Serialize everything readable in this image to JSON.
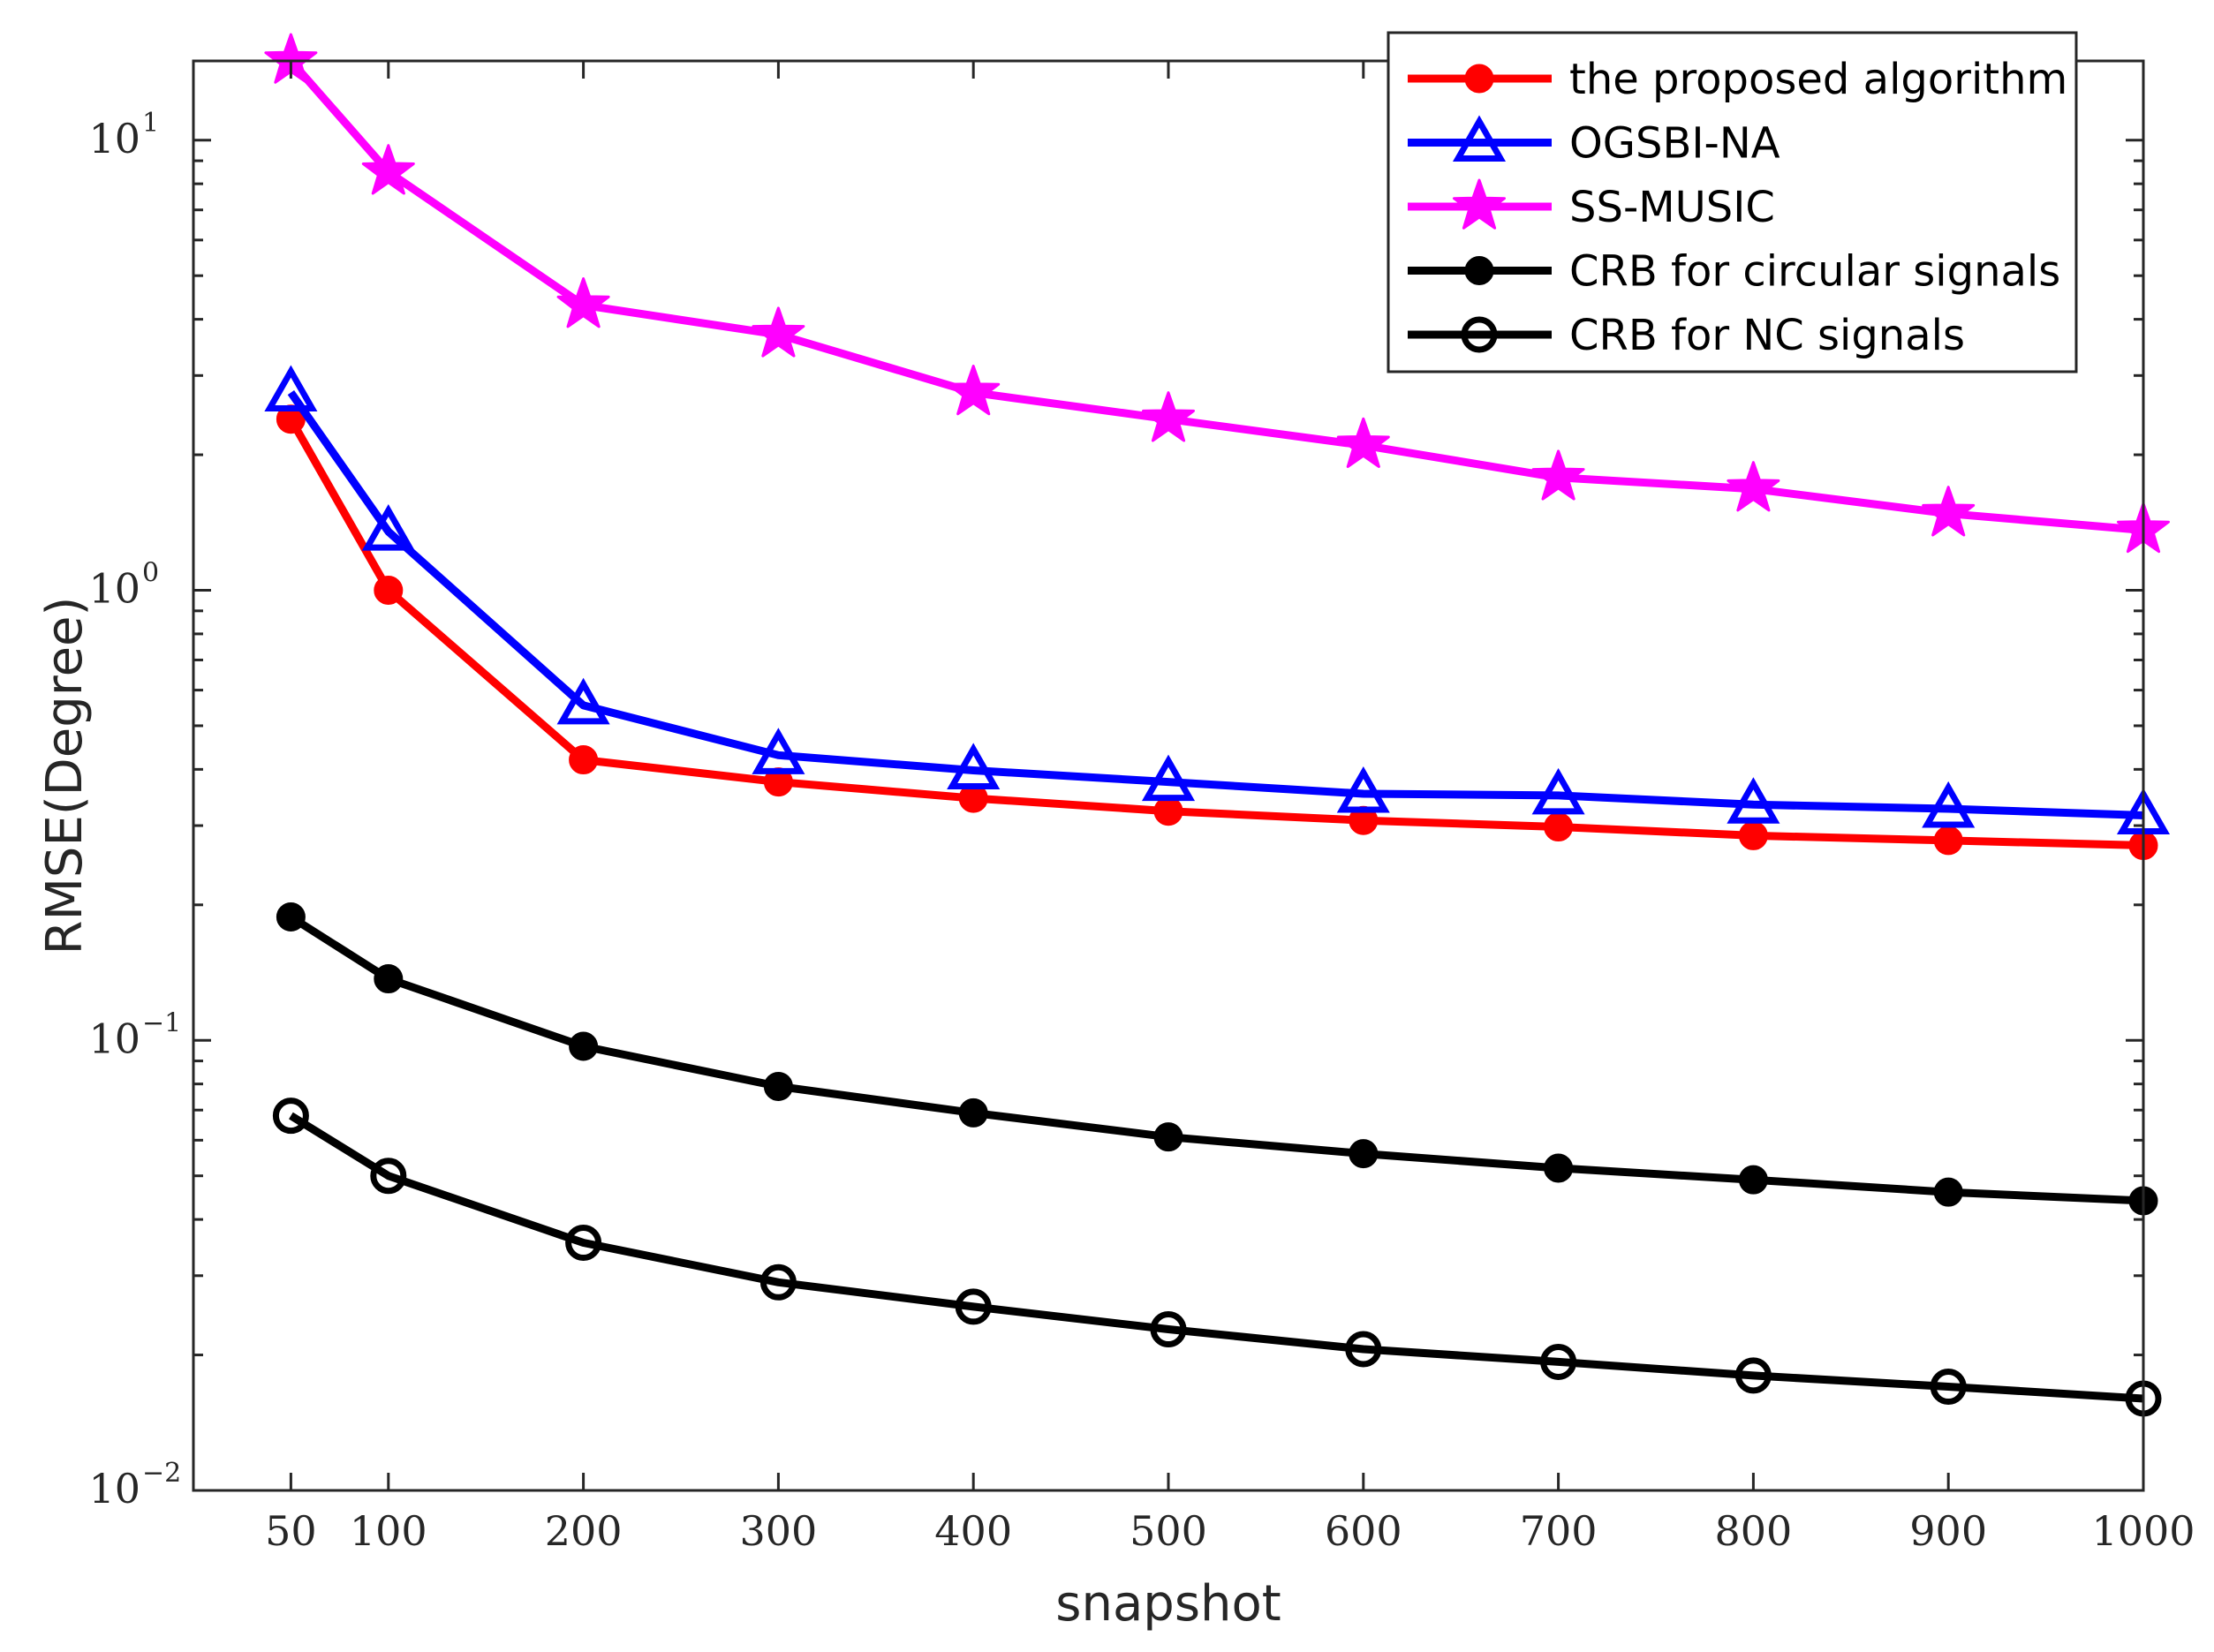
{
  "chart_data": {
    "type": "line",
    "xlabel": "snapshot",
    "ylabel": "RMSE(Degree)",
    "yscale": "log",
    "xlim": [
      0,
      1000
    ],
    "ylim": [
      0.01,
      15
    ],
    "x": [
      50,
      100,
      200,
      300,
      400,
      500,
      600,
      700,
      800,
      900,
      1000
    ],
    "xticks": [
      50,
      100,
      200,
      300,
      400,
      500,
      600,
      700,
      800,
      900,
      1000
    ],
    "yticks": [
      {
        "value": 0.01,
        "base": "10",
        "exp": "−2"
      },
      {
        "value": 0.1,
        "base": "10",
        "exp": "−1"
      },
      {
        "value": 1,
        "base": "10",
        "exp": "0"
      },
      {
        "value": 10,
        "base": "10",
        "exp": "1"
      }
    ],
    "legend_position": "top-right",
    "series": [
      {
        "name": "the proposed algorithm",
        "color": "#ff0000",
        "marker": "dot",
        "values": [
          2.4,
          1.0,
          0.42,
          0.375,
          0.345,
          0.323,
          0.308,
          0.298,
          0.285,
          0.278,
          0.271
        ]
      },
      {
        "name": "OGSBI-NA",
        "color": "#0000ff",
        "marker": "triangle",
        "values": [
          2.75,
          1.35,
          0.555,
          0.43,
          0.398,
          0.375,
          0.353,
          0.35,
          0.334,
          0.327,
          0.316
        ]
      },
      {
        "name": "SS-MUSIC",
        "color": "#ff00ff",
        "marker": "star",
        "values": [
          15.0,
          8.5,
          4.3,
          3.7,
          2.75,
          2.4,
          2.1,
          1.78,
          1.68,
          1.48,
          1.36
        ]
      },
      {
        "name": "CRB for circular signals",
        "color": "#000000",
        "marker": "dot",
        "values": [
          0.188,
          0.137,
          0.097,
          0.079,
          0.069,
          0.061,
          0.056,
          0.052,
          0.049,
          0.046,
          0.044
        ]
      },
      {
        "name": "CRB for NC signals",
        "color": "#000000",
        "marker": "circle",
        "values": [
          0.068,
          0.05,
          0.0355,
          0.029,
          0.0256,
          0.0228,
          0.0206,
          0.0193,
          0.018,
          0.017,
          0.016
        ]
      }
    ]
  }
}
